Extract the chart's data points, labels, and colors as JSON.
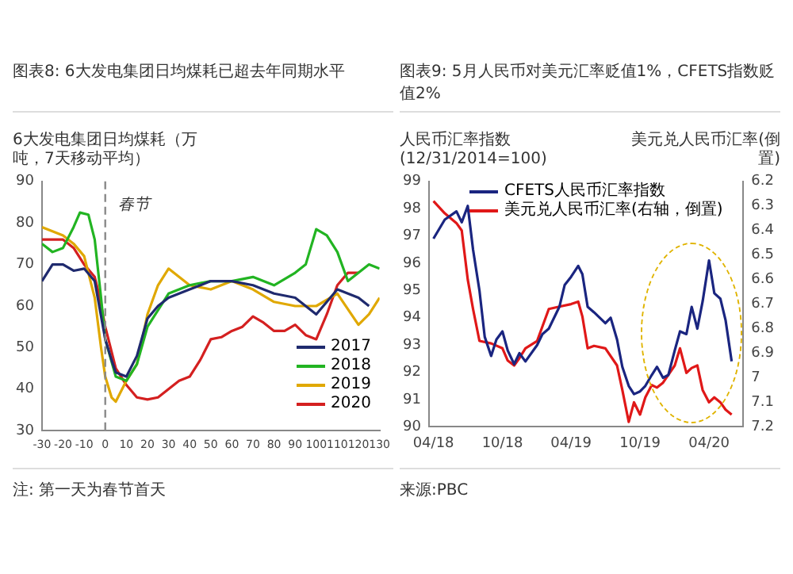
{
  "chart_data": [
    {
      "type": "line",
      "title": "图表8: 6大发电集团日均煤耗已超去年同期水平",
      "ylabel": "6大发电集团日均煤耗（万吨，7天移动平均）",
      "xlim": [
        -30,
        130
      ],
      "xticks": [
        -30,
        -20,
        -10,
        0,
        10,
        20,
        30,
        40,
        50,
        60,
        70,
        80,
        90,
        100,
        110,
        120,
        130
      ],
      "ylim": [
        30,
        90
      ],
      "yticks": [
        30,
        40,
        50,
        60,
        70,
        80,
        90
      ],
      "legend": "bottom right",
      "grid": false,
      "marker": "none",
      "ref_lines": [
        {
          "axis": "x",
          "value": 0,
          "label": "春节",
          "color": "#8a8a8a",
          "line_style": "dashed"
        }
      ],
      "annotations": [
        "注: 第一天为春节首天"
      ],
      "series": [
        {
          "name": "2017",
          "color": "#1f2a6e",
          "x": [
            -30,
            -25,
            -20,
            -15,
            -10,
            -5,
            0,
            3,
            5,
            10,
            15,
            20,
            25,
            30,
            40,
            50,
            60,
            70,
            80,
            90,
            100,
            105,
            110,
            120,
            125
          ],
          "values": [
            66,
            70,
            70,
            68.5,
            69,
            66,
            52,
            47,
            44,
            43,
            48,
            57,
            60,
            62,
            64,
            66,
            66,
            65,
            63,
            62,
            58,
            61,
            64,
            62,
            60
          ]
        },
        {
          "name": "2018",
          "color": "#22b422",
          "x": [
            -30,
            -25,
            -20,
            -15,
            -12,
            -8,
            -5,
            -2,
            0,
            5,
            10,
            15,
            20,
            30,
            40,
            50,
            60,
            70,
            80,
            90,
            95,
            100,
            105,
            110,
            115,
            120,
            125,
            130
          ],
          "values": [
            75,
            73,
            74,
            79,
            82.5,
            82,
            76,
            62,
            52,
            43,
            42,
            46,
            55,
            63,
            65,
            66,
            66,
            67,
            65,
            68,
            70,
            78.5,
            77,
            73,
            66,
            68,
            70,
            69
          ]
        },
        {
          "name": "2019",
          "color": "#e0a800",
          "x": [
            -30,
            -25,
            -20,
            -15,
            -10,
            -5,
            -2,
            0,
            3,
            5,
            10,
            15,
            20,
            25,
            30,
            35,
            40,
            50,
            60,
            70,
            80,
            90,
            100,
            110,
            120,
            125,
            130
          ],
          "values": [
            79,
            78,
            77,
            75,
            72,
            62,
            50,
            43,
            38,
            37,
            42,
            46,
            58,
            65,
            69,
            67,
            65,
            64,
            66,
            64,
            61,
            60,
            60,
            63,
            55.5,
            58,
            62
          ]
        },
        {
          "name": "2020",
          "color": "#d42020",
          "x": [
            -30,
            -25,
            -20,
            -15,
            -10,
            -5,
            -3,
            0,
            5,
            10,
            15,
            20,
            25,
            30,
            35,
            40,
            45,
            50,
            55,
            60,
            65,
            70,
            75,
            80,
            85,
            90,
            95,
            100,
            105,
            110,
            115,
            120
          ],
          "values": [
            76,
            76,
            76,
            74,
            70,
            67,
            63,
            55,
            45,
            41,
            38,
            37.5,
            38,
            40,
            42,
            43,
            47,
            52,
            52.5,
            54,
            55,
            57.5,
            56,
            54,
            54,
            55.5,
            53,
            52,
            58,
            65,
            68,
            68
          ]
        }
      ]
    },
    {
      "type": "line",
      "title": "图表9: 5月人民币对美元汇率贬值1%，CFETS指数贬值2%",
      "ylabel": "人民币汇率指数(12/31/2014=100)",
      "y2label": "美元兑人民币汇率(倒置)",
      "xlim": [
        "2018-03-20",
        "2020-07-01"
      ],
      "xticks": [
        {
          "value": "2018-04-01",
          "label": "04/18"
        },
        {
          "value": "2018-10-01",
          "label": "10/18"
        },
        {
          "value": "2019-04-01",
          "label": "04/19"
        },
        {
          "value": "2019-10-01",
          "label": "10/19"
        },
        {
          "value": "2020-04-01",
          "label": "04/20"
        }
      ],
      "ylim": [
        90,
        99
      ],
      "yticks": [
        90,
        91,
        92,
        93,
        94,
        95,
        96,
        97,
        98,
        99
      ],
      "y2lim": [
        7.2,
        6.2
      ],
      "y2ticks": [
        7.2,
        7.1,
        7.0,
        6.9,
        6.8,
        6.7,
        6.6,
        6.5,
        6.4,
        6.3,
        6.2
      ],
      "legend": "top left",
      "grid": false,
      "marker": "none",
      "annotations": [
        "来源:PBC"
      ],
      "series": [
        {
          "name": "CFETS人民币汇率指数",
          "color": "#1a2580",
          "x": [
            "2018-04-01",
            "2018-05-01",
            "2018-06-01",
            "2018-06-15",
            "2018-07-01",
            "2018-07-15",
            "2018-08-01",
            "2018-08-15",
            "2018-09-01",
            "2018-09-15",
            "2018-10-01",
            "2018-10-15",
            "2018-11-01",
            "2018-11-15",
            "2018-12-01",
            "2019-01-01",
            "2019-01-15",
            "2019-02-01",
            "2019-03-01",
            "2019-03-15",
            "2019-04-01",
            "2019-04-20",
            "2019-05-01",
            "2019-05-15",
            "2019-06-01",
            "2019-07-01",
            "2019-07-15",
            "2019-08-01",
            "2019-08-15",
            "2019-09-01",
            "2019-09-15",
            "2019-10-01",
            "2019-10-15",
            "2019-11-01",
            "2019-11-15",
            "2019-12-01",
            "2019-12-15",
            "2020-01-01",
            "2020-01-15",
            "2020-02-01",
            "2020-02-15",
            "2020-03-01",
            "2020-03-15",
            "2020-04-01",
            "2020-04-15",
            "2020-05-01",
            "2020-05-15",
            "2020-05-31"
          ],
          "values": [
            96.9,
            97.6,
            97.9,
            97.5,
            98.1,
            96.5,
            95,
            93.3,
            92.6,
            93.2,
            93.5,
            92.8,
            92.3,
            92.7,
            92.4,
            93,
            93.4,
            93.6,
            94.4,
            95.2,
            95.5,
            95.9,
            95.6,
            94.4,
            94.2,
            93.8,
            94,
            93.2,
            92.2,
            91.5,
            91.2,
            91.3,
            91.5,
            91.9,
            92.2,
            91.8,
            91.9,
            92.8,
            93.5,
            93.4,
            94.4,
            93.6,
            94.6,
            96.1,
            94.9,
            94.7,
            93.9,
            92.4
          ]
        },
        {
          "name": "美元兑人民币汇率(右轴，倒置)",
          "color": "#e01818",
          "axis": "y2",
          "x": [
            "2018-04-01",
            "2018-05-01",
            "2018-06-01",
            "2018-06-15",
            "2018-07-01",
            "2018-07-15",
            "2018-08-01",
            "2018-09-01",
            "2018-10-01",
            "2018-10-15",
            "2018-11-01",
            "2018-11-15",
            "2018-12-01",
            "2019-01-01",
            "2019-02-01",
            "2019-03-01",
            "2019-04-01",
            "2019-04-20",
            "2019-05-01",
            "2019-05-15",
            "2019-06-01",
            "2019-07-01",
            "2019-08-01",
            "2019-08-15",
            "2019-09-01",
            "2019-09-15",
            "2019-10-01",
            "2019-10-15",
            "2019-11-01",
            "2019-11-15",
            "2019-12-01",
            "2020-01-01",
            "2020-01-15",
            "2020-02-01",
            "2020-02-15",
            "2020-03-01",
            "2020-03-15",
            "2020-04-01",
            "2020-04-15",
            "2020-05-01",
            "2020-05-15",
            "2020-05-31"
          ],
          "values": [
            6.28,
            6.33,
            6.37,
            6.4,
            6.6,
            6.72,
            6.85,
            6.86,
            6.88,
            6.93,
            6.95,
            6.92,
            6.88,
            6.85,
            6.72,
            6.71,
            6.7,
            6.69,
            6.75,
            6.88,
            6.87,
            6.88,
            6.95,
            7.05,
            7.18,
            7.1,
            7.15,
            7.08,
            7.03,
            7.04,
            7.02,
            6.95,
            6.88,
            6.98,
            6.96,
            6.95,
            7.05,
            7.1,
            7.08,
            7.1,
            7.13,
            7.15
          ]
        }
      ]
    }
  ]
}
